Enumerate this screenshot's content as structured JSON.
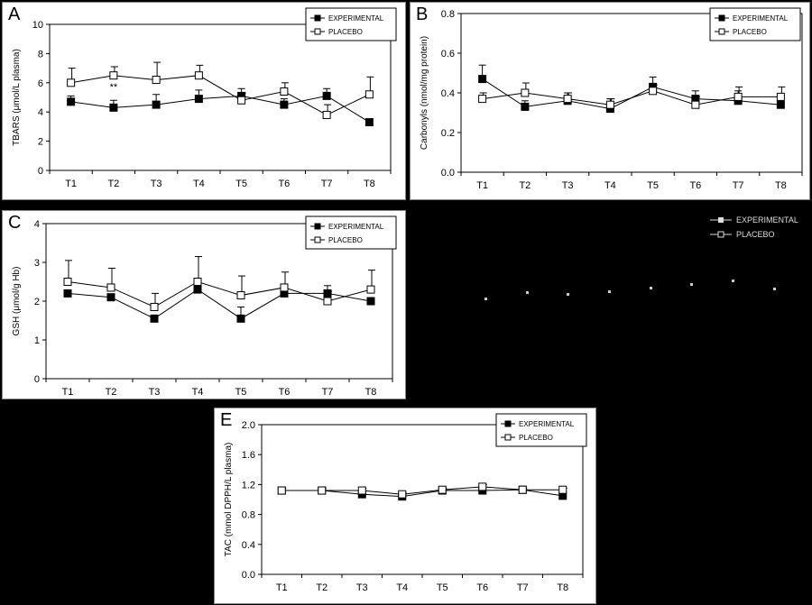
{
  "legend": {
    "experimental": "EXPERIMENTAL",
    "placebo": "PLACEBO"
  },
  "chart_data": [
    {
      "panel": "A",
      "type": "line",
      "x": [
        "T1",
        "T2",
        "T3",
        "T4",
        "T5",
        "T6",
        "T7",
        "T8"
      ],
      "ylabel": "TBARS (μmol/L plasma)",
      "ylim": [
        0,
        10
      ],
      "yticks": [
        0,
        2,
        4,
        6,
        8,
        10
      ],
      "tick_format": "int",
      "annotations": [
        {
          "text": "**",
          "x": "T2",
          "y": 5.5
        }
      ],
      "series": [
        {
          "name": "EXPERIMENTAL",
          "values": [
            4.7,
            4.3,
            4.5,
            4.9,
            5.1,
            4.5,
            5.1,
            3.3
          ],
          "err": [
            0.4,
            0.5,
            0.7,
            0.6,
            0.5,
            0.4,
            0.5,
            0.0
          ]
        },
        {
          "name": "PLACEBO",
          "values": [
            6.0,
            6.5,
            6.2,
            6.5,
            4.8,
            5.4,
            3.8,
            5.2
          ],
          "err": [
            1.0,
            0.6,
            1.2,
            0.7,
            0.5,
            0.6,
            0.7,
            1.2
          ]
        }
      ],
      "legend_position": "top-right"
    },
    {
      "panel": "B",
      "type": "line",
      "x": [
        "T1",
        "T2",
        "T3",
        "T4",
        "T5",
        "T6",
        "T7",
        "T8"
      ],
      "ylabel": "Carbonyls (nmol/mg protein)",
      "ylim": [
        0,
        0.8
      ],
      "yticks": [
        0,
        0.2,
        0.4,
        0.6,
        0.8
      ],
      "tick_format": "1dp",
      "series": [
        {
          "name": "EXPERIMENTAL",
          "values": [
            0.47,
            0.33,
            0.36,
            0.32,
            0.43,
            0.37,
            0.36,
            0.34
          ],
          "err": [
            0.07,
            0.03,
            0.04,
            0.05,
            0.05,
            0.04,
            0.05,
            0.05
          ]
        },
        {
          "name": "PLACEBO",
          "values": [
            0.37,
            0.4,
            0.37,
            0.34,
            0.41,
            0.34,
            0.38,
            0.38
          ],
          "err": [
            0.03,
            0.05,
            0.03,
            0.03,
            0.03,
            0.04,
            0.05,
            0.05
          ]
        }
      ],
      "legend_position": "top-right"
    },
    {
      "panel": "C",
      "type": "line",
      "x": [
        "T1",
        "T2",
        "T3",
        "T4",
        "T5",
        "T6",
        "T7",
        "T8"
      ],
      "ylabel": "GSH (μmol/g Hb)",
      "ylim": [
        0,
        4
      ],
      "yticks": [
        0,
        1,
        2,
        3,
        4
      ],
      "tick_format": "int",
      "series": [
        {
          "name": "EXPERIMENTAL",
          "values": [
            2.2,
            2.1,
            1.55,
            2.3,
            1.55,
            2.2,
            2.2,
            2.0
          ],
          "err": [
            0.0,
            0.0,
            0.0,
            0.0,
            0.3,
            0.0,
            0.2,
            0.0
          ]
        },
        {
          "name": "PLACEBO",
          "values": [
            2.5,
            2.35,
            1.85,
            2.5,
            2.15,
            2.35,
            2.0,
            2.3
          ],
          "err": [
            0.55,
            0.5,
            0.35,
            0.65,
            0.5,
            0.4,
            0.25,
            0.5
          ]
        }
      ],
      "legend_position": "top-right"
    },
    {
      "panel": "E",
      "type": "line",
      "x": [
        "T1",
        "T2",
        "T3",
        "T4",
        "T5",
        "T6",
        "T7",
        "T8"
      ],
      "ylabel": "TAC (mmol DPPH/L plasma)",
      "ylim": [
        0,
        2.0
      ],
      "yticks": [
        0.0,
        0.4,
        0.8,
        1.2,
        1.6,
        2.0
      ],
      "tick_format": "1dp",
      "series": [
        {
          "name": "EXPERIMENTAL",
          "values": [
            1.12,
            1.12,
            1.07,
            1.04,
            1.12,
            1.12,
            1.13,
            1.05
          ],
          "err": [
            0.03,
            0.03,
            0.03,
            0.03,
            0.02,
            0.03,
            0.02,
            0.02
          ]
        },
        {
          "name": "PLACEBO",
          "values": [
            1.12,
            1.12,
            1.12,
            1.07,
            1.13,
            1.17,
            1.13,
            1.13
          ],
          "err": [
            0.03,
            0.03,
            0.03,
            0.02,
            0.02,
            0.03,
            0.02,
            0.02
          ]
        }
      ],
      "legend_position": "top-right"
    }
  ]
}
